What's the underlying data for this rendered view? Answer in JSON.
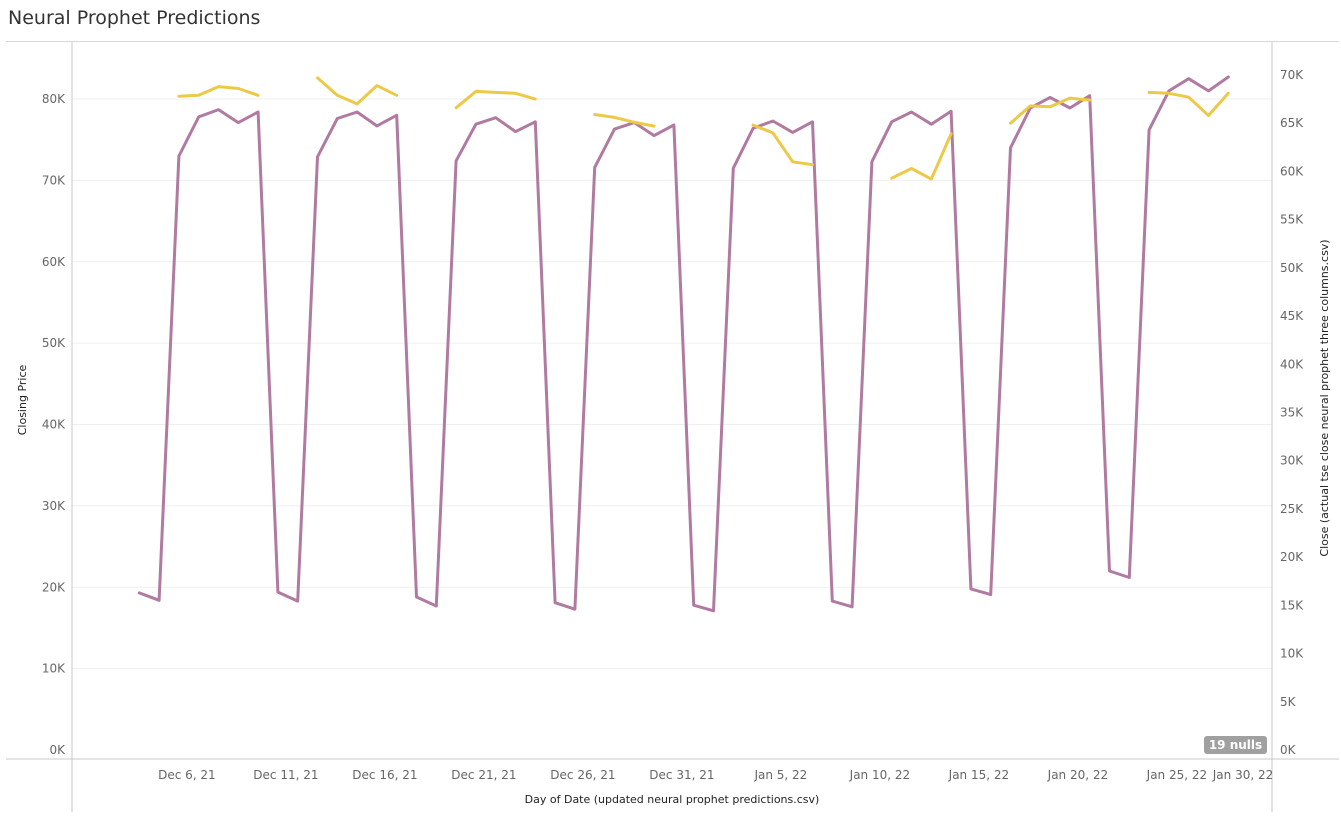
{
  "title": "Neural Prophet Predictions",
  "nulls_badge": "19 nulls",
  "colors": {
    "actual": "#b07aa1",
    "predicted": "#edc948",
    "grid": "#efefef",
    "axis": "#c8c8c8"
  },
  "chart_data": {
    "type": "line",
    "xlabel": "Day of Date (updated neural prophet predictions.csv)",
    "ylabel_left": "Closing Price",
    "ylabel_right": "Close (actual tse close neural prophet three columns.csv)",
    "ylim_left": [
      0,
      86000
    ],
    "ylim_right": [
      0,
      73500
    ],
    "yticks_left": [
      "0K",
      "10K",
      "20K",
      "30K",
      "40K",
      "50K",
      "60K",
      "70K",
      "80K"
    ],
    "yticks_right": [
      "0K",
      "5K",
      "10K",
      "15K",
      "20K",
      "25K",
      "30K",
      "35K",
      "40K",
      "45K",
      "50K",
      "55K",
      "60K",
      "65K",
      "70K"
    ],
    "x_ticks": [
      "Dec 6, 21",
      "Dec 11, 21",
      "Dec 16, 21",
      "Dec 21, 21",
      "Dec 26, 21",
      "Dec 31, 21",
      "Jan 5, 22",
      "Jan 10, 22",
      "Jan 15, 22",
      "Jan 20, 22",
      "Jan 25, 22",
      "Jan 30, 22"
    ],
    "grid": "horizontal",
    "series": [
      {
        "name": "Closing Price",
        "axis": "left",
        "points": [
          [
            "2021-12-04",
            19300
          ],
          [
            "2021-12-05",
            18400
          ],
          [
            "2021-12-06",
            73000
          ],
          [
            "2021-12-07",
            77800
          ],
          [
            "2021-12-08",
            78700
          ],
          [
            "2021-12-09",
            77100
          ],
          [
            "2021-12-10",
            78400
          ],
          [
            "2021-12-11",
            19400
          ],
          [
            "2021-12-12",
            18300
          ],
          [
            "2021-12-13",
            72900
          ],
          [
            "2021-12-14",
            77600
          ],
          [
            "2021-12-15",
            78400
          ],
          [
            "2021-12-16",
            76700
          ],
          [
            "2021-12-17",
            78000
          ],
          [
            "2021-12-18",
            18800
          ],
          [
            "2021-12-19",
            17700
          ],
          [
            "2021-12-20",
            72400
          ],
          [
            "2021-12-21",
            76900
          ],
          [
            "2021-12-22",
            77700
          ],
          [
            "2021-12-23",
            76000
          ],
          [
            "2021-12-24",
            77200
          ],
          [
            "2021-12-25",
            18100
          ],
          [
            "2021-12-26",
            17300
          ],
          [
            "2021-12-27",
            71600
          ],
          [
            "2021-12-28",
            76300
          ],
          [
            "2021-12-29",
            77100
          ],
          [
            "2021-12-30",
            75500
          ],
          [
            "2021-12-31",
            76800
          ],
          [
            "2022-01-01",
            17800
          ],
          [
            "2022-01-02",
            17100
          ],
          [
            "2022-01-03",
            71500
          ],
          [
            "2022-01-04",
            76400
          ],
          [
            "2022-01-05",
            77300
          ],
          [
            "2022-01-06",
            75900
          ],
          [
            "2022-01-07",
            77200
          ],
          [
            "2022-01-08",
            18300
          ],
          [
            "2022-01-09",
            17600
          ],
          [
            "2022-01-10",
            72300
          ],
          [
            "2022-01-11",
            77200
          ],
          [
            "2022-01-12",
            78400
          ],
          [
            "2022-01-13",
            76900
          ],
          [
            "2022-01-14",
            78500
          ],
          [
            "2022-01-15",
            19800
          ],
          [
            "2022-01-16",
            19100
          ],
          [
            "2022-01-17",
            74000
          ],
          [
            "2022-01-18",
            78900
          ],
          [
            "2022-01-19",
            80200
          ],
          [
            "2022-01-20",
            78900
          ],
          [
            "2022-01-21",
            80400
          ],
          [
            "2022-01-22",
            22000
          ],
          [
            "2022-01-23",
            21200
          ],
          [
            "2022-01-24",
            76200
          ],
          [
            "2022-01-25",
            81000
          ],
          [
            "2022-01-26",
            82500
          ],
          [
            "2022-01-27",
            81000
          ],
          [
            "2022-01-28",
            82700
          ]
        ]
      },
      {
        "name": "Close (actual tse close neural prophet three columns.csv)",
        "axis": "right",
        "segments": [
          [
            [
              "2021-12-06",
              67800
            ],
            [
              "2021-12-07",
              67900
            ],
            [
              "2021-12-08",
              68800
            ],
            [
              "2021-12-09",
              68600
            ],
            [
              "2021-12-10",
              67900
            ]
          ],
          [
            [
              "2021-12-13",
              69700
            ],
            [
              "2021-12-14",
              67900
            ],
            [
              "2021-12-15",
              67000
            ],
            [
              "2021-12-16",
              68900
            ],
            [
              "2021-12-17",
              67900
            ]
          ],
          [
            [
              "2021-12-20",
              66600
            ],
            [
              "2021-12-21",
              68300
            ],
            [
              "2021-12-22",
              68200
            ],
            [
              "2021-12-23",
              68100
            ],
            [
              "2021-12-24",
              67500
            ]
          ],
          [
            [
              "2021-12-27",
              65900
            ],
            [
              "2021-12-28",
              65600
            ],
            [
              "2021-12-29",
              65100
            ],
            [
              "2021-12-30",
              64700
            ]
          ],
          [
            [
              "2022-01-04",
              64800
            ],
            [
              "2022-01-05",
              64000
            ],
            [
              "2022-01-06",
              61000
            ],
            [
              "2022-01-07",
              60700
            ]
          ],
          [
            [
              "2022-01-11",
              59300
            ],
            [
              "2022-01-12",
              60300
            ],
            [
              "2022-01-13",
              59200
            ],
            [
              "2022-01-14",
              63900
            ]
          ],
          [
            [
              "2022-01-17",
              65000
            ],
            [
              "2022-01-18",
              66800
            ],
            [
              "2022-01-19",
              66700
            ],
            [
              "2022-01-20",
              67600
            ],
            [
              "2022-01-21",
              67400
            ]
          ],
          [
            [
              "2022-01-24",
              68200
            ],
            [
              "2022-01-25",
              68100
            ],
            [
              "2022-01-26",
              67700
            ],
            [
              "2022-01-27",
              65800
            ],
            [
              "2022-01-28",
              68100
            ]
          ]
        ]
      }
    ]
  }
}
